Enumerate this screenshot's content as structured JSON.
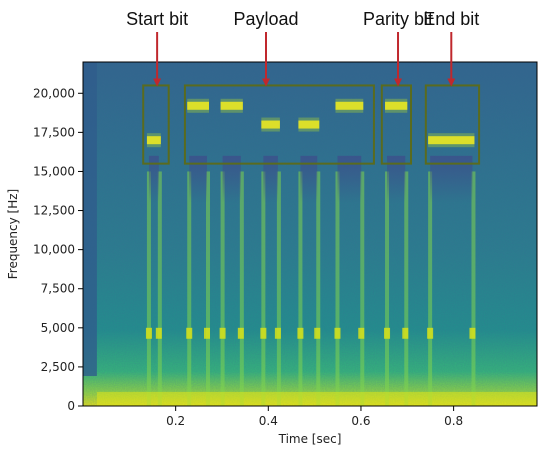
{
  "chart_data": {
    "type": "heatmap",
    "title": "",
    "xlabel": "Time [sec]",
    "ylabel": "Frequency [Hz]",
    "xlim": [
      0.0,
      0.98
    ],
    "ylim": [
      0,
      22000
    ],
    "x_ticks": [
      {
        "value": 0.2,
        "label": "0.2"
      },
      {
        "value": 0.4,
        "label": "0.4"
      },
      {
        "value": 0.6,
        "label": "0.6"
      },
      {
        "value": 0.8,
        "label": "0.8"
      }
    ],
    "y_ticks": [
      {
        "value": 0,
        "label": "0"
      },
      {
        "value": 2500,
        "label": "2,500"
      },
      {
        "value": 5000,
        "label": "5,000"
      },
      {
        "value": 7500,
        "label": "7,500"
      },
      {
        "value": 10000,
        "label": "10,000"
      },
      {
        "value": 12500,
        "label": "12,500"
      },
      {
        "value": 15000,
        "label": "15,000"
      },
      {
        "value": 17500,
        "label": "17,500"
      },
      {
        "value": 20000,
        "label": "20,000"
      }
    ],
    "colormap": "viridis",
    "background_color": "#2a7f8e",
    "box_color": "#5a6b1e",
    "arrow_color": "#c0282d",
    "tone_bursts": [
      {
        "t0": 0.138,
        "t1": 0.168,
        "freq": 17000
      },
      {
        "t0": 0.225,
        "t1": 0.272,
        "freq": 19200
      },
      {
        "t0": 0.297,
        "t1": 0.345,
        "freq": 19200
      },
      {
        "t0": 0.385,
        "t1": 0.425,
        "freq": 18000
      },
      {
        "t0": 0.465,
        "t1": 0.51,
        "freq": 18000
      },
      {
        "t0": 0.545,
        "t1": 0.605,
        "freq": 19200
      },
      {
        "t0": 0.652,
        "t1": 0.7,
        "freq": 19200
      },
      {
        "t0": 0.745,
        "t1": 0.845,
        "freq": 17000
      }
    ],
    "annotations": [
      {
        "label": "Start bit",
        "t0": 0.13,
        "t1": 0.185,
        "f0": 15500,
        "f1": 20500,
        "arrow_t": 0.16
      },
      {
        "label": "Payload",
        "t0": 0.22,
        "t1": 0.628,
        "f0": 15500,
        "f1": 20500,
        "arrow_t": 0.395
      },
      {
        "label": "Parity bit",
        "t0": 0.645,
        "t1": 0.708,
        "f0": 15500,
        "f1": 20500,
        "arrow_t": 0.68
      },
      {
        "label": "End bit",
        "t0": 0.74,
        "t1": 0.855,
        "f0": 15500,
        "f1": 20500,
        "arrow_t": 0.795
      }
    ]
  }
}
